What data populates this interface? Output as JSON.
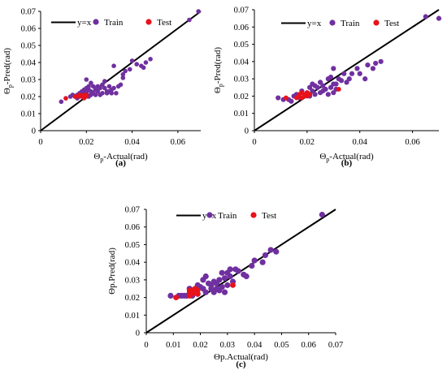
{
  "colors": {
    "train": "#7030A0",
    "test": "#E8121A",
    "line": "#000000",
    "axis": "#000000"
  },
  "chart_data": [
    {
      "type": "scatter",
      "panel_label": "(a)",
      "xlabel_main": "Θ",
      "xlabel_sub": "p",
      "xlabel_rest": "-Actual(rad)",
      "ylabel_main": "Θ",
      "ylabel_sub": "p",
      "ylabel_rest": "-Pred(rad)",
      "xlim": [
        0,
        0.07
      ],
      "ylim": [
        0,
        0.07
      ],
      "xticks": [
        0,
        0.02,
        0.04,
        0.06
      ],
      "xtick_labels": [
        "0",
        "0.02",
        "0.04",
        "0.06"
      ],
      "yticks": [
        0,
        0.01,
        0.02,
        0.03,
        0.04,
        0.05,
        0.06,
        0.07
      ],
      "ytick_labels": [
        "0",
        "0.01",
        "0.02",
        "0.03",
        "0.04",
        "0.05",
        "0.06",
        "0.07"
      ],
      "legend": [
        "y=x",
        "Train",
        "Test"
      ],
      "reference_line": [
        [
          0,
          0
        ],
        [
          0.07,
          0.07
        ]
      ],
      "series": [
        {
          "name": "Train",
          "points": [
            [
              0.009,
              0.017
            ],
            [
              0.011,
              0.019
            ],
            [
              0.013,
              0.02
            ],
            [
              0.014,
              0.021
            ],
            [
              0.015,
              0.02
            ],
            [
              0.016,
              0.021
            ],
            [
              0.016,
              0.019
            ],
            [
              0.017,
              0.022
            ],
            [
              0.017,
              0.02
            ],
            [
              0.018,
              0.021
            ],
            [
              0.018,
              0.023
            ],
            [
              0.019,
              0.021
            ],
            [
              0.019,
              0.022
            ],
            [
              0.02,
              0.023
            ],
            [
              0.02,
              0.025
            ],
            [
              0.02,
              0.022
            ],
            [
              0.021,
              0.02
            ],
            [
              0.021,
              0.026
            ],
            [
              0.021,
              0.024
            ],
            [
              0.022,
              0.028
            ],
            [
              0.022,
              0.021
            ],
            [
              0.022,
              0.023
            ],
            [
              0.023,
              0.022
            ],
            [
              0.023,
              0.026
            ],
            [
              0.024,
              0.024
            ],
            [
              0.024,
              0.021
            ],
            [
              0.025,
              0.026
            ],
            [
              0.025,
              0.023
            ],
            [
              0.026,
              0.021
            ],
            [
              0.026,
              0.025
            ],
            [
              0.027,
              0.027
            ],
            [
              0.027,
              0.022
            ],
            [
              0.028,
              0.029
            ],
            [
              0.028,
              0.025
            ],
            [
              0.029,
              0.023
            ],
            [
              0.029,
              0.022
            ],
            [
              0.03,
              0.026
            ],
            [
              0.03,
              0.023
            ],
            [
              0.031,
              0.022
            ],
            [
              0.031,
              0.024
            ],
            [
              0.032,
              0.038
            ],
            [
              0.032,
              0.025
            ],
            [
              0.033,
              0.022
            ],
            [
              0.034,
              0.026
            ],
            [
              0.035,
              0.027
            ],
            [
              0.036,
              0.031
            ],
            [
              0.036,
              0.033
            ],
            [
              0.037,
              0.035
            ],
            [
              0.039,
              0.036
            ],
            [
              0.04,
              0.041
            ],
            [
              0.042,
              0.039
            ],
            [
              0.044,
              0.038
            ],
            [
              0.045,
              0.037
            ],
            [
              0.046,
              0.04
            ],
            [
              0.048,
              0.042
            ],
            [
              0.02,
              0.03
            ],
            [
              0.024,
              0.025
            ],
            [
              0.019,
              0.024
            ],
            [
              0.065,
              0.065
            ],
            [
              0.069,
              0.07
            ]
          ]
        },
        {
          "name": "Test",
          "points": [
            [
              0.011,
              0.019
            ],
            [
              0.015,
              0.02
            ],
            [
              0.016,
              0.02
            ],
            [
              0.017,
              0.021
            ],
            [
              0.018,
              0.02
            ],
            [
              0.019,
              0.021
            ],
            [
              0.019,
              0.019
            ],
            [
              0.02,
              0.02
            ],
            [
              0.02,
              0.021
            ]
          ]
        }
      ]
    },
    {
      "type": "scatter",
      "panel_label": "(b)",
      "xlabel_main": "Θ",
      "xlabel_sub": "p",
      "xlabel_rest": "-Actual(rad)",
      "ylabel_main": "Θ",
      "ylabel_sub": "p",
      "ylabel_rest": "-Pred(rad)",
      "xlim": [
        0,
        0.07
      ],
      "ylim": [
        0,
        0.07
      ],
      "xticks": [
        0,
        0.02,
        0.04,
        0.06
      ],
      "xtick_labels": [
        "0",
        "0.02",
        "0.04",
        "0.06"
      ],
      "yticks": [
        0,
        0.01,
        0.02,
        0.03,
        0.04,
        0.05,
        0.06,
        0.07
      ],
      "ytick_labels": [
        "0",
        "0.01",
        "0.02",
        "0.03",
        "0.04",
        "0.05",
        "0.06",
        "0.07"
      ],
      "legend": [
        "y=x",
        "Train",
        "Test"
      ],
      "reference_line": [
        [
          0,
          0
        ],
        [
          0.07,
          0.07
        ]
      ],
      "series": [
        {
          "name": "Train",
          "points": [
            [
              0.009,
              0.019
            ],
            [
              0.011,
              0.018
            ],
            [
              0.013,
              0.018
            ],
            [
              0.014,
              0.017
            ],
            [
              0.015,
              0.02
            ],
            [
              0.016,
              0.021
            ],
            [
              0.017,
              0.019
            ],
            [
              0.018,
              0.023
            ],
            [
              0.019,
              0.02
            ],
            [
              0.02,
              0.022
            ],
            [
              0.021,
              0.025
            ],
            [
              0.021,
              0.02
            ],
            [
              0.022,
              0.023
            ],
            [
              0.022,
              0.027
            ],
            [
              0.023,
              0.021
            ],
            [
              0.023,
              0.026
            ],
            [
              0.024,
              0.025
            ],
            [
              0.025,
              0.022
            ],
            [
              0.025,
              0.028
            ],
            [
              0.026,
              0.023
            ],
            [
              0.026,
              0.026
            ],
            [
              0.027,
              0.024
            ],
            [
              0.028,
              0.021
            ],
            [
              0.028,
              0.03
            ],
            [
              0.029,
              0.025
            ],
            [
              0.03,
              0.036
            ],
            [
              0.03,
              0.022
            ],
            [
              0.031,
              0.027
            ],
            [
              0.031,
              0.024
            ],
            [
              0.032,
              0.03
            ],
            [
              0.033,
              0.029
            ],
            [
              0.034,
              0.033
            ],
            [
              0.035,
              0.028
            ],
            [
              0.036,
              0.03
            ],
            [
              0.037,
              0.033
            ],
            [
              0.039,
              0.036
            ],
            [
              0.04,
              0.033
            ],
            [
              0.042,
              0.03
            ],
            [
              0.043,
              0.038
            ],
            [
              0.045,
              0.036
            ],
            [
              0.046,
              0.039
            ],
            [
              0.048,
              0.04
            ],
            [
              0.03,
              0.027
            ],
            [
              0.029,
              0.031
            ],
            [
              0.065,
              0.066
            ],
            [
              0.07,
              0.065
            ]
          ]
        },
        {
          "name": "Test",
          "points": [
            [
              0.012,
              0.019
            ],
            [
              0.016,
              0.019
            ],
            [
              0.017,
              0.021
            ],
            [
              0.017,
              0.02
            ],
            [
              0.018,
              0.019
            ],
            [
              0.018,
              0.022
            ],
            [
              0.019,
              0.02
            ],
            [
              0.019,
              0.021
            ],
            [
              0.02,
              0.02
            ],
            [
              0.02,
              0.022
            ],
            [
              0.021,
              0.021
            ],
            [
              0.032,
              0.024
            ]
          ]
        }
      ]
    },
    {
      "type": "scatter",
      "panel_label": "(c)",
      "xlabel_main": "Θp.Actual(rad)",
      "xlabel_sub": "",
      "xlabel_rest": "",
      "ylabel_main": "Θp.Pred(rad)",
      "ylabel_sub": "",
      "ylabel_rest": "",
      "xlim": [
        0,
        0.07
      ],
      "ylim": [
        0,
        0.07
      ],
      "xticks": [
        0,
        0.01,
        0.02,
        0.03,
        0.04,
        0.05,
        0.06,
        0.07
      ],
      "xtick_labels": [
        "0",
        "0.01",
        "0.02",
        "0.03",
        "0.04",
        "0.05",
        "0.06",
        "0.07"
      ],
      "yticks": [
        0,
        0.01,
        0.02,
        0.03,
        0.04,
        0.05,
        0.06,
        0.07
      ],
      "ytick_labels": [
        "0",
        "0.01",
        "0.02",
        "0.03",
        "0.04",
        "0.05",
        "0.06",
        "0.07"
      ],
      "legend": [
        "y=x",
        "Train",
        "Test"
      ],
      "reference_line": [
        [
          0,
          0
        ],
        [
          0.07,
          0.07
        ]
      ],
      "series": [
        {
          "name": "Train",
          "points": [
            [
              0.009,
              0.021
            ],
            [
              0.012,
              0.021
            ],
            [
              0.013,
              0.021
            ],
            [
              0.014,
              0.021
            ],
            [
              0.015,
              0.021
            ],
            [
              0.016,
              0.025
            ],
            [
              0.017,
              0.021
            ],
            [
              0.018,
              0.024
            ],
            [
              0.019,
              0.022
            ],
            [
              0.02,
              0.026
            ],
            [
              0.021,
              0.025
            ],
            [
              0.021,
              0.03
            ],
            [
              0.022,
              0.023
            ],
            [
              0.022,
              0.032
            ],
            [
              0.023,
              0.028
            ],
            [
              0.024,
              0.027
            ],
            [
              0.024,
              0.025
            ],
            [
              0.025,
              0.023
            ],
            [
              0.025,
              0.029
            ],
            [
              0.026,
              0.025
            ],
            [
              0.026,
              0.028
            ],
            [
              0.027,
              0.03
            ],
            [
              0.027,
              0.024
            ],
            [
              0.028,
              0.034
            ],
            [
              0.028,
              0.026
            ],
            [
              0.029,
              0.023
            ],
            [
              0.029,
              0.031
            ],
            [
              0.03,
              0.034
            ],
            [
              0.03,
              0.027
            ],
            [
              0.031,
              0.036
            ],
            [
              0.031,
              0.032
            ],
            [
              0.032,
              0.029
            ],
            [
              0.033,
              0.036
            ],
            [
              0.034,
              0.035
            ],
            [
              0.036,
              0.033
            ],
            [
              0.037,
              0.032
            ],
            [
              0.039,
              0.038
            ],
            [
              0.04,
              0.041
            ],
            [
              0.043,
              0.04
            ],
            [
              0.044,
              0.044
            ],
            [
              0.046,
              0.047
            ],
            [
              0.048,
              0.046
            ],
            [
              0.017,
              0.023
            ],
            [
              0.019,
              0.027
            ],
            [
              0.065,
              0.067
            ]
          ]
        },
        {
          "name": "Test",
          "points": [
            [
              0.011,
              0.02
            ],
            [
              0.016,
              0.021
            ],
            [
              0.016,
              0.023
            ],
            [
              0.017,
              0.022
            ],
            [
              0.017,
              0.024
            ],
            [
              0.018,
              0.023
            ],
            [
              0.018,
              0.025
            ],
            [
              0.019,
              0.024
            ],
            [
              0.019,
              0.022
            ],
            [
              0.016,
              0.024
            ],
            [
              0.032,
              0.027
            ]
          ]
        }
      ]
    }
  ]
}
